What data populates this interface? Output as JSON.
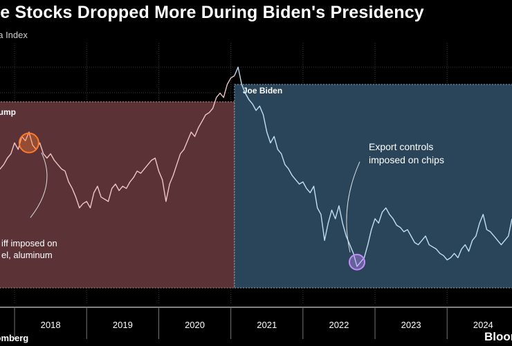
{
  "header": {
    "title": "ese Stocks Dropped More During Biden's Presidency",
    "subtitle": "na Index"
  },
  "footer": {
    "source": "loomberg",
    "brand": "Bloom"
  },
  "colors": {
    "background": "#000000",
    "trump_fill": "#5b3337",
    "trump_border": "#c9868a",
    "trump_line": "#f4c4c4",
    "biden_fill": "#2a4559",
    "biden_border": "#8fb2cc",
    "biden_line": "#bfe0f5",
    "tariff_marker": "#ff7a2a",
    "chips_marker": "#c48cff",
    "grid": "#3a3a3a",
    "axis_text": "#ffffff"
  },
  "chart_data": {
    "type": "line",
    "title": "ese Stocks Dropped More During Biden's Presidency",
    "subtitle": "na Index",
    "x_tick_labels": [
      "2018",
      "2019",
      "2020",
      "2021",
      "2022",
      "2023",
      "2024"
    ],
    "x_range": [
      2017.75,
      2024.9
    ],
    "y_range": [
      0,
      100
    ],
    "y_tick_labels_visible": false,
    "grid": true,
    "legend": "none",
    "series": [
      {
        "period": "trump",
        "x": [
          2017.75,
          2017.8,
          2017.85,
          2017.9,
          2017.95,
          2018.0,
          2018.05,
          2018.1,
          2018.15,
          2018.2,
          2018.25,
          2018.3,
          2018.35,
          2018.4,
          2018.45,
          2018.5,
          2018.55,
          2018.6,
          2018.65,
          2018.7,
          2018.75,
          2018.8,
          2018.85,
          2018.9,
          2018.95,
          2019.0,
          2019.05,
          2019.1,
          2019.15,
          2019.2,
          2019.25,
          2019.3,
          2019.35,
          2019.4,
          2019.45,
          2019.5,
          2019.55,
          2019.6,
          2019.65,
          2019.7,
          2019.75,
          2019.8,
          2019.85,
          2019.9,
          2019.95,
          2020.0,
          2020.05,
          2020.1,
          2020.15,
          2020.2,
          2020.25,
          2020.3,
          2020.35,
          2020.4,
          2020.45,
          2020.5,
          2020.55,
          2020.6,
          2020.65,
          2020.7,
          2020.75,
          2020.8,
          2020.85,
          2020.9,
          2020.95,
          2021.0,
          2021.05
        ],
        "values": [
          52,
          53,
          55,
          58,
          60,
          65,
          62,
          68,
          66,
          70,
          64,
          62,
          65,
          60,
          58,
          60,
          57,
          55,
          53,
          52,
          47,
          44,
          40,
          35,
          37,
          38,
          35,
          42,
          45,
          40,
          39,
          38,
          44,
          46,
          43,
          45,
          44,
          47,
          49,
          52,
          51,
          53,
          55,
          57,
          58,
          52,
          48,
          38,
          46,
          50,
          55,
          60,
          62,
          66,
          70,
          68,
          72,
          75,
          78,
          79,
          81,
          86,
          88,
          86,
          92,
          95,
          96
        ]
      },
      {
        "period": "biden",
        "x": [
          2021.05,
          2021.1,
          2021.15,
          2021.2,
          2021.25,
          2021.3,
          2021.35,
          2021.4,
          2021.45,
          2021.5,
          2021.55,
          2021.6,
          2021.65,
          2021.7,
          2021.75,
          2021.8,
          2021.85,
          2021.9,
          2021.95,
          2022.0,
          2022.05,
          2022.1,
          2022.15,
          2022.2,
          2022.25,
          2022.3,
          2022.35,
          2022.4,
          2022.45,
          2022.5,
          2022.55,
          2022.6,
          2022.65,
          2022.7,
          2022.75,
          2022.8,
          2022.85,
          2022.9,
          2022.95,
          2023.0,
          2023.05,
          2023.1,
          2023.15,
          2023.2,
          2023.25,
          2023.3,
          2023.35,
          2023.4,
          2023.45,
          2023.5,
          2023.55,
          2023.6,
          2023.65,
          2023.7,
          2023.75,
          2023.8,
          2023.85,
          2023.9,
          2023.95,
          2024.0,
          2024.05,
          2024.1,
          2024.15,
          2024.2,
          2024.25,
          2024.3,
          2024.35,
          2024.4,
          2024.45,
          2024.5,
          2024.55,
          2024.6,
          2024.65,
          2024.7,
          2024.75,
          2024.8,
          2024.85,
          2024.9
        ],
        "values": [
          96,
          100,
          92,
          88,
          85,
          83,
          80,
          82,
          78,
          70,
          65,
          68,
          62,
          60,
          55,
          53,
          50,
          48,
          46,
          47,
          44,
          42,
          45,
          35,
          32,
          20,
          28,
          34,
          30,
          36,
          28,
          22,
          18,
          14,
          8,
          10,
          12,
          18,
          25,
          30,
          28,
          33,
          35,
          32,
          30,
          27,
          26,
          24,
          25,
          22,
          19,
          18,
          20,
          22,
          18,
          17,
          16,
          14,
          13,
          11,
          12,
          14,
          12,
          16,
          18,
          15,
          20,
          22,
          28,
          32,
          25,
          24,
          22,
          20,
          18,
          20,
          22,
          30
        ]
      }
    ],
    "periods": [
      {
        "label": "rump",
        "x_start": 2017.75,
        "x_end": 2021.05,
        "y_top": 84
      },
      {
        "label": "Joe Biden",
        "x_start": 2021.05,
        "x_end": 2024.9,
        "y_top": 92
      }
    ],
    "annotations": [
      {
        "lines": [
          "iff imposed on",
          "el, aluminum"
        ],
        "x": 2018.2,
        "y": 65
      },
      {
        "lines": [
          "Export controls",
          "imposed on chips"
        ],
        "x": 2022.75,
        "y": 10
      }
    ]
  }
}
